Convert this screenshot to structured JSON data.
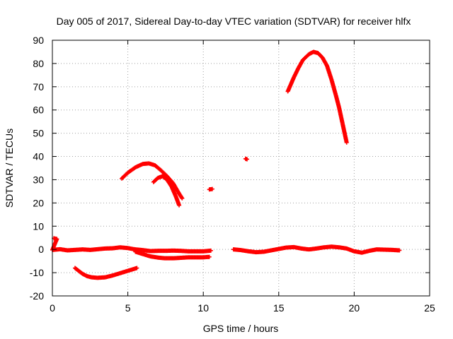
{
  "chart_data": {
    "type": "scatter",
    "title": "Day 005 of 2017, Sidereal Day-to-day VTEC variation (SDTVAR) for receiver hlfx",
    "xlabel": "GPS time / hours",
    "ylabel": "SDTVAR / TECUs",
    "xlim": [
      0,
      25
    ],
    "ylim": [
      -20,
      90
    ],
    "xticks": [
      0,
      5,
      10,
      15,
      20,
      25
    ],
    "yticks": [
      -20,
      -10,
      0,
      10,
      20,
      30,
      40,
      50,
      60,
      70,
      80,
      90
    ],
    "grid": true,
    "marker": "plus",
    "color": "#ff0000",
    "series": [
      {
        "points": [
          [
            0.1,
            4.8
          ],
          [
            0.3,
            4.5
          ],
          [
            0.0,
            -0.2
          ],
          [
            0.5,
            0.1
          ],
          [
            1.0,
            -0.4
          ],
          [
            1.5,
            -0.2
          ],
          [
            2.0,
            0.0
          ],
          [
            2.5,
            -0.2
          ],
          [
            3.0,
            0.1
          ],
          [
            3.5,
            0.4
          ],
          [
            4.0,
            0.5
          ],
          [
            4.5,
            0.9
          ],
          [
            5.0,
            0.6
          ],
          [
            5.5,
            0.0
          ],
          [
            6.0,
            -0.3
          ],
          [
            6.5,
            -0.7
          ],
          [
            7.0,
            -0.6
          ],
          [
            7.5,
            -0.6
          ],
          [
            8.0,
            -0.5
          ],
          [
            8.5,
            -0.6
          ],
          [
            9.0,
            -0.8
          ],
          [
            9.5,
            -0.8
          ],
          [
            10.0,
            -0.8
          ],
          [
            10.5,
            -0.5
          ]
        ]
      },
      {
        "points": [
          [
            5.5,
            -1.0
          ],
          [
            6.0,
            -2.0
          ],
          [
            6.5,
            -3.0
          ],
          [
            7.0,
            -3.5
          ],
          [
            7.5,
            -3.8
          ],
          [
            8.0,
            -3.8
          ],
          [
            8.5,
            -3.6
          ],
          [
            9.0,
            -3.4
          ],
          [
            9.5,
            -3.4
          ],
          [
            10.0,
            -3.4
          ],
          [
            10.4,
            -3.2
          ]
        ]
      },
      {
        "points": [
          [
            1.5,
            -8.0
          ],
          [
            1.8,
            -9.5
          ],
          [
            2.0,
            -10.5
          ],
          [
            2.3,
            -11.5
          ],
          [
            2.6,
            -12.0
          ],
          [
            3.0,
            -12.2
          ],
          [
            3.5,
            -12.0
          ],
          [
            4.0,
            -11.2
          ],
          [
            4.5,
            -10.2
          ],
          [
            5.0,
            -9.2
          ],
          [
            5.5,
            -8.2
          ],
          [
            5.6,
            -8.0
          ]
        ]
      },
      {
        "points": [
          [
            4.6,
            30.5
          ],
          [
            5.0,
            33.0
          ],
          [
            5.5,
            35.3
          ],
          [
            6.0,
            36.8
          ],
          [
            6.4,
            37.0
          ],
          [
            6.8,
            36.2
          ],
          [
            7.2,
            34.0
          ],
          [
            7.6,
            31.5
          ],
          [
            8.0,
            28.5
          ],
          [
            8.4,
            24.0
          ],
          [
            8.6,
            22.0
          ]
        ]
      },
      {
        "points": [
          [
            6.7,
            29.0
          ],
          [
            7.0,
            30.8
          ],
          [
            7.3,
            31.5
          ],
          [
            7.6,
            30.0
          ],
          [
            7.9,
            27.0
          ],
          [
            8.2,
            22.5
          ],
          [
            8.4,
            19.0
          ]
        ]
      },
      {
        "points": [
          [
            10.4,
            25.8
          ],
          [
            10.6,
            26.0
          ]
        ]
      },
      {
        "points": [
          [
            12.8,
            39.0
          ],
          [
            12.9,
            38.8
          ]
        ]
      },
      {
        "points": [
          [
            12.0,
            0.0
          ],
          [
            12.5,
            -0.3
          ],
          [
            13.0,
            -0.8
          ],
          [
            13.5,
            -1.2
          ],
          [
            14.0,
            -1.0
          ],
          [
            14.5,
            -0.4
          ],
          [
            15.0,
            0.2
          ],
          [
            15.5,
            0.8
          ],
          [
            16.0,
            1.0
          ],
          [
            16.5,
            0.4
          ],
          [
            17.0,
            0.0
          ],
          [
            17.5,
            0.4
          ],
          [
            18.0,
            0.9
          ],
          [
            18.5,
            1.2
          ],
          [
            19.0,
            0.9
          ],
          [
            19.5,
            0.4
          ],
          [
            20.0,
            -0.8
          ],
          [
            20.5,
            -1.4
          ],
          [
            21.0,
            -0.6
          ],
          [
            21.5,
            0.0
          ],
          [
            22.0,
            -0.1
          ],
          [
            22.5,
            -0.2
          ],
          [
            23.0,
            -0.4
          ]
        ]
      },
      {
        "points": [
          [
            15.6,
            68.0
          ],
          [
            15.8,
            71.0
          ],
          [
            16.0,
            74.0
          ],
          [
            16.3,
            78.0
          ],
          [
            16.6,
            81.5
          ],
          [
            17.0,
            84.0
          ],
          [
            17.3,
            85.0
          ],
          [
            17.6,
            84.5
          ],
          [
            17.9,
            82.5
          ],
          [
            18.2,
            79.0
          ],
          [
            18.5,
            73.0
          ],
          [
            18.8,
            66.0
          ],
          [
            19.0,
            61.0
          ],
          [
            19.2,
            55.0
          ],
          [
            19.4,
            49.0
          ],
          [
            19.5,
            46.0
          ]
        ]
      }
    ]
  }
}
